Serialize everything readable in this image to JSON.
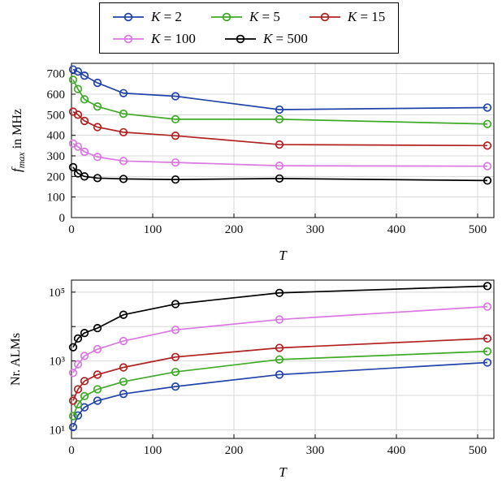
{
  "legend": {
    "entries": [
      {
        "label": "K = 2",
        "color": "#2244aa"
      },
      {
        "label": "K = 5",
        "color": "#3faa27"
      },
      {
        "label": "K = 15",
        "color": "#b22222"
      },
      {
        "label": "K = 100",
        "color": "#d878e0"
      },
      {
        "label": "K = 500",
        "color": "#000000"
      }
    ]
  },
  "chart_data": [
    {
      "type": "line",
      "title": "",
      "xlabel": "T",
      "ylabel": {
        "math": "f",
        "sub": "max",
        "rest": " in MHz"
      },
      "yscale": "linear",
      "xlim": [
        0,
        520
      ],
      "ylim": [
        0,
        750
      ],
      "grid": true,
      "x": [
        2,
        8,
        16,
        32,
        64,
        128,
        256,
        512
      ],
      "xticks": [
        {
          "v": 0,
          "label": "0"
        },
        {
          "v": 100,
          "label": "100"
        },
        {
          "v": 200,
          "label": "200"
        },
        {
          "v": 300,
          "label": "300"
        },
        {
          "v": 400,
          "label": "400"
        },
        {
          "v": 500,
          "label": "500"
        }
      ],
      "yticks": [
        {
          "v": 0,
          "label": "0"
        },
        {
          "v": 100,
          "label": "100"
        },
        {
          "v": 200,
          "label": "200"
        },
        {
          "v": 300,
          "label": "300"
        },
        {
          "v": 400,
          "label": "400"
        },
        {
          "v": 500,
          "label": "500"
        },
        {
          "v": 600,
          "label": "600"
        },
        {
          "v": 700,
          "label": "700"
        }
      ],
      "series": [
        {
          "name": "K = 2",
          "color": "#2244aa",
          "values": [
            720,
            710,
            690,
            655,
            605,
            590,
            525,
            535
          ]
        },
        {
          "name": "K = 5",
          "color": "#3faa27",
          "values": [
            670,
            625,
            575,
            540,
            505,
            478,
            478,
            455
          ]
        },
        {
          "name": "K = 15",
          "color": "#b22222",
          "values": [
            515,
            500,
            470,
            440,
            415,
            398,
            355,
            350
          ]
        },
        {
          "name": "K = 100",
          "color": "#d878e0",
          "values": [
            360,
            345,
            320,
            295,
            275,
            268,
            252,
            250
          ]
        },
        {
          "name": "K = 500",
          "color": "#000000",
          "values": [
            245,
            215,
            200,
            192,
            188,
            185,
            190,
            180
          ]
        }
      ]
    },
    {
      "type": "line",
      "title": "",
      "xlabel": "T",
      "ylabel": "Nr. ALMs",
      "yscale": "log",
      "xlim": [
        0,
        520
      ],
      "ylim": [
        5.6,
        224000
      ],
      "grid": true,
      "x": [
        2,
        8,
        16,
        32,
        64,
        128,
        256,
        512
      ],
      "xticks": [
        {
          "v": 0,
          "label": "0"
        },
        {
          "v": 100,
          "label": "100"
        },
        {
          "v": 200,
          "label": "200"
        },
        {
          "v": 300,
          "label": "300"
        },
        {
          "v": 400,
          "label": "400"
        },
        {
          "v": 500,
          "label": "500"
        }
      ],
      "yticks": [
        {
          "v": 10,
          "label": "10¹"
        },
        {
          "v": 100,
          "label": ""
        },
        {
          "v": 1000,
          "label": "10³"
        },
        {
          "v": 10000,
          "label": ""
        },
        {
          "v": 100000,
          "label": "10⁵"
        }
      ],
      "series": [
        {
          "name": "K = 2",
          "color": "#2244aa",
          "values": [
            12,
            26,
            45,
            70,
            110,
            180,
            400,
            900
          ]
        },
        {
          "name": "K = 5",
          "color": "#3faa27",
          "values": [
            25,
            55,
            95,
            150,
            250,
            480,
            1100,
            1900
          ]
        },
        {
          "name": "K = 15",
          "color": "#b22222",
          "values": [
            70,
            150,
            260,
            400,
            650,
            1300,
            2400,
            4500
          ]
        },
        {
          "name": "K = 100",
          "color": "#d878e0",
          "values": [
            450,
            800,
            1400,
            2200,
            3800,
            8000,
            16000,
            38000
          ]
        },
        {
          "name": "K = 500",
          "color": "#000000",
          "values": [
            2500,
            4500,
            6500,
            9000,
            22000,
            45000,
            95000,
            150000
          ]
        }
      ]
    }
  ]
}
